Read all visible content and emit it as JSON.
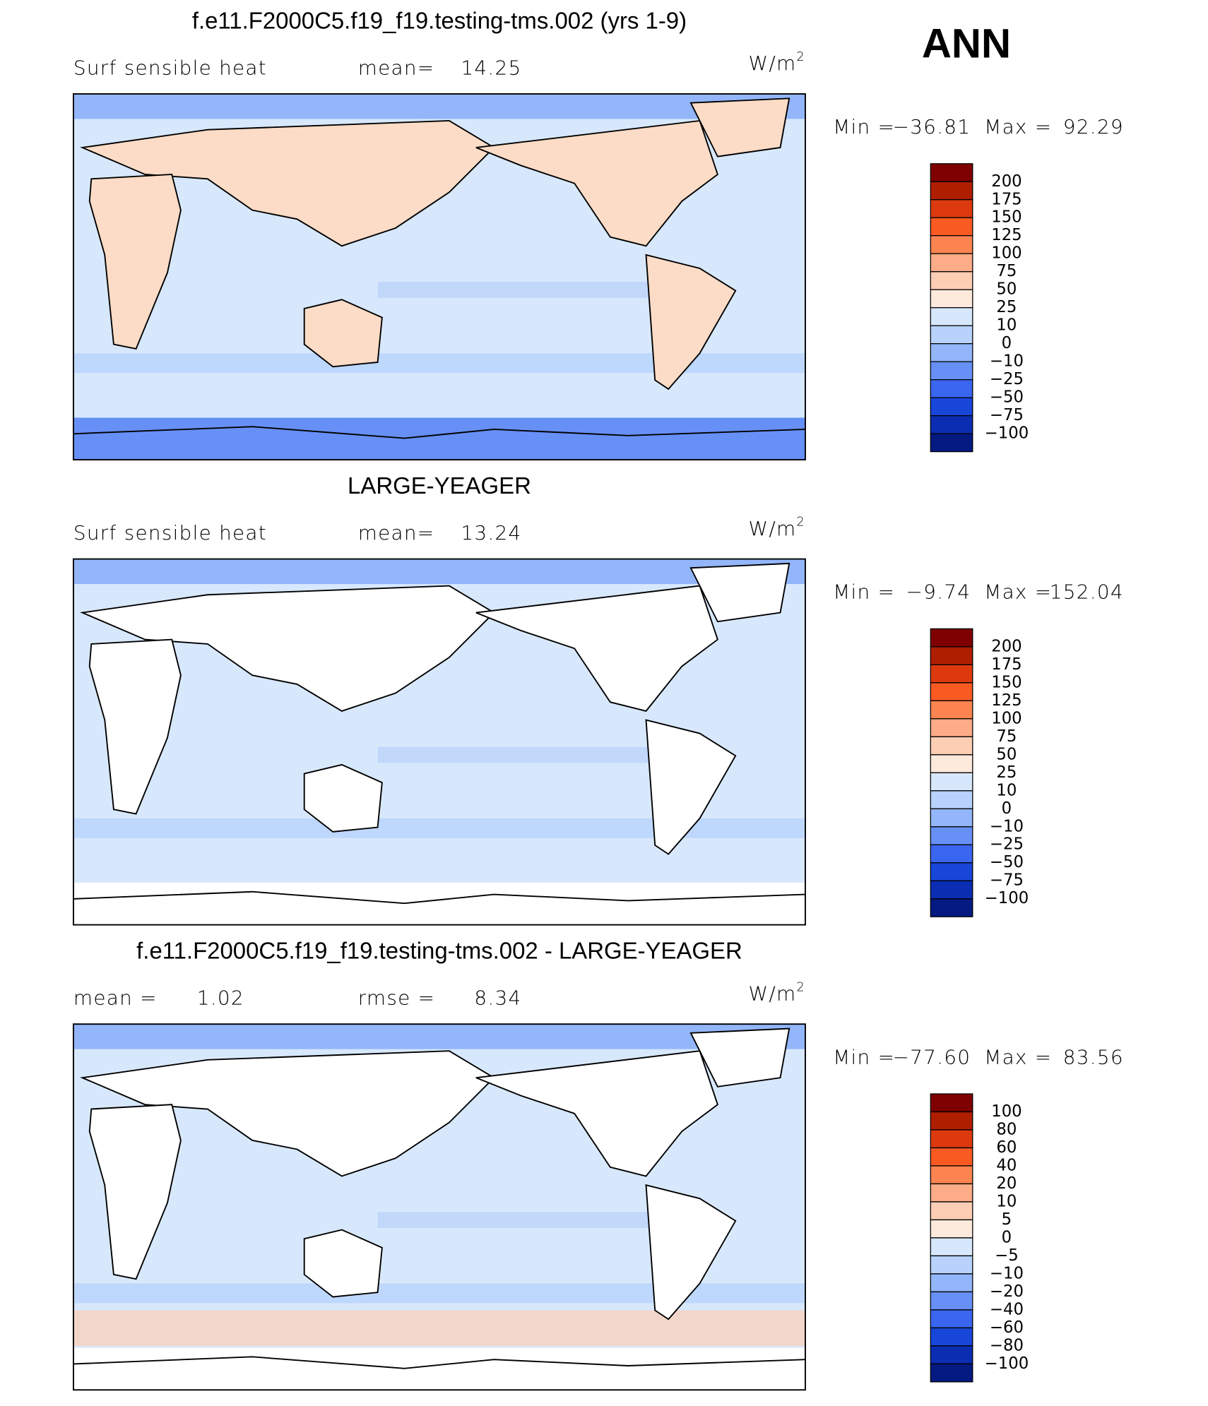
{
  "header": {
    "title": "ANN"
  },
  "panels": [
    {
      "title": "f.e11.F2000C5.f19_f19.testing-tms.002 (yrs 1-9)",
      "annotations": [
        "Surf sensible heat",
        "mean=",
        "14.25"
      ],
      "units": "W/m",
      "units_sup": "2",
      "min_label": "Min =",
      "min": "−36.81",
      "max_label": "Max =",
      "max": "92.29",
      "land": "#fcdcc6",
      "colorbar": {
        "levels": [
          "200",
          "175",
          "150",
          "125",
          "100",
          "75",
          "50",
          "25",
          "10",
          "0",
          "−10",
          "−25",
          "−50",
          "−75",
          "−100"
        ],
        "colors": [
          "#7f0000",
          "#b01e00",
          "#dc3a0e",
          "#f85a22",
          "#fc8450",
          "#fcac86",
          "#fdceb4",
          "#feeadc",
          "#d8e8fc",
          "#b8d2fb",
          "#93b6fa",
          "#6690f6",
          "#3a66ef",
          "#1746d8",
          "#0b2db2",
          "#051a80"
        ]
      }
    },
    {
      "title": "LARGE-YEAGER",
      "annotations": [
        "Surf sensible heat",
        "mean=",
        "13.24"
      ],
      "units": "W/m",
      "units_sup": "2",
      "min_label": "Min =",
      "min": "−9.74",
      "max_label": "Max =",
      "max": "152.04",
      "land": "#ffffff",
      "colorbar": {
        "levels": [
          "200",
          "175",
          "150",
          "125",
          "100",
          "75",
          "50",
          "25",
          "10",
          "0",
          "−10",
          "−25",
          "−50",
          "−75",
          "−100"
        ],
        "colors": [
          "#7f0000",
          "#b01e00",
          "#dc3a0e",
          "#f85a22",
          "#fc8450",
          "#fcac86",
          "#fdceb4",
          "#feeadc",
          "#d8e8fc",
          "#b8d2fb",
          "#93b6fa",
          "#6690f6",
          "#3a66ef",
          "#1746d8",
          "#0b2db2",
          "#051a80"
        ]
      }
    },
    {
      "title": "f.e11.F2000C5.f19_f19.testing-tms.002 - LARGE-YEAGER",
      "annotations": [
        "mean =",
        "1.02",
        "rmse =",
        "8.34"
      ],
      "units": "W/m",
      "units_sup": "2",
      "min_label": "Min =",
      "min": "−77.60",
      "max_label": "Max =",
      "max": "83.56",
      "land": "#ffffff",
      "colorbar": {
        "levels": [
          "100",
          "80",
          "60",
          "40",
          "20",
          "10",
          "5",
          "0",
          "−5",
          "−10",
          "−20",
          "−40",
          "−60",
          "−80",
          "−100"
        ],
        "colors": [
          "#7f0000",
          "#b01e00",
          "#dc3a0e",
          "#f85a22",
          "#fc8450",
          "#fcac86",
          "#fdceb4",
          "#feeadc",
          "#d8e8fc",
          "#b8d2fb",
          "#93b6fa",
          "#6690f6",
          "#3a66ef",
          "#1746d8",
          "#0b2db2",
          "#051a80"
        ]
      }
    }
  ]
}
